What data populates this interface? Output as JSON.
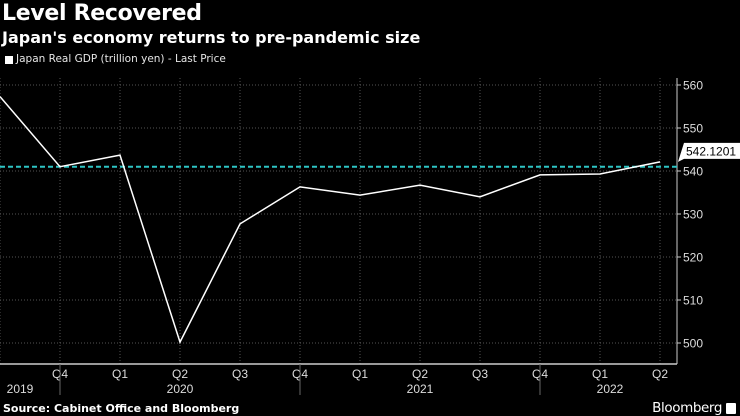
{
  "header": {
    "title": "Level Recovered",
    "subtitle": "Japan's economy returns to pre-pandemic size"
  },
  "footer": {
    "source": "Source: Cabinet Office and Bloomberg",
    "brand": "Bloomberg"
  },
  "chart_data": {
    "type": "line",
    "title": "Level Recovered",
    "subtitle": "Japan's economy returns to pre-pandemic size",
    "legend": {
      "placement": "top-left",
      "entries": [
        "Japan Real GDP (trillion yen) - Last Price"
      ]
    },
    "x": [
      "2019 Q3",
      "2019 Q4",
      "2020 Q1",
      "2020 Q2",
      "2020 Q3",
      "2020 Q4",
      "2021 Q1",
      "2021 Q2",
      "2021 Q3",
      "2021 Q4",
      "2022 Q1",
      "2022 Q2"
    ],
    "x_tick_labels": [
      "Q4",
      "Q1",
      "Q2",
      "Q3",
      "Q4",
      "Q1",
      "Q2",
      "Q3",
      "Q4",
      "Q1",
      "Q2"
    ],
    "x_year_labels": [
      "2019",
      "2020",
      "2021",
      "2022"
    ],
    "series": [
      {
        "name": "Japan Real GDP (trillion yen) - Last Price",
        "values": [
          557.3,
          541.0,
          543.7,
          500.2,
          527.7,
          536.3,
          534.4,
          536.7,
          534.0,
          539.1,
          539.3,
          542.1201
        ],
        "color": "#ffffff"
      }
    ],
    "reference_line": {
      "value": 541.0,
      "color": "#2ec4c4",
      "style": "dashed"
    },
    "last_value_label": "542.1201",
    "ylim": [
      497,
      563
    ],
    "y_ticks": [
      500,
      510,
      520,
      530,
      540,
      550,
      560
    ],
    "y_axis_side": "right",
    "grid": true,
    "background": "#000000"
  }
}
